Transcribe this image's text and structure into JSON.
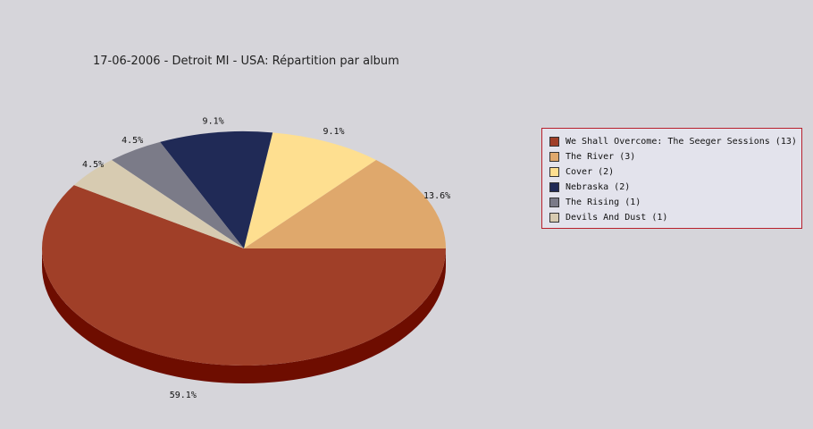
{
  "chart_data": {
    "type": "pie",
    "title": "17-06-2006 - Detroit MI - USA:  Répartition par album",
    "slices": [
      {
        "label": "We Shall Overcome: The Seeger Sessions (13)",
        "value": 13,
        "percent_label": "59.1%",
        "color": "#a03f28"
      },
      {
        "label": "The River (3)",
        "value": 3,
        "percent_label": "13.6%",
        "color": "#dfa86c"
      },
      {
        "label": "Cover (2)",
        "value": 2,
        "percent_label": "9.1%",
        "color": "#fedf90"
      },
      {
        "label": "Nebraska (2)",
        "value": 2,
        "percent_label": "9.1%",
        "color": "#202a56"
      },
      {
        "label": "The Rising (1)",
        "value": 1,
        "percent_label": "4.5%",
        "color": "#7b7b88"
      },
      {
        "label": "Devils And Dust (1)",
        "value": 1,
        "percent_label": "4.5%",
        "color": "#d7cbb1"
      }
    ],
    "side_color": "#6e0d00",
    "legend_position": "right"
  }
}
